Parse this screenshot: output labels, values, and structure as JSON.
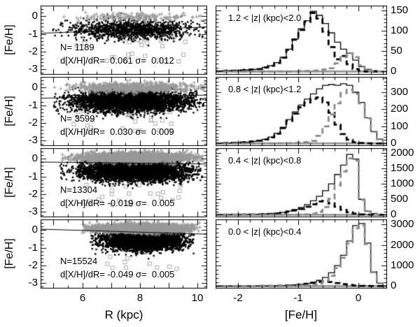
{
  "chart_data": {
    "type": "multi-panel",
    "description": "4x2 grid of panels: left column scatter plots of [Fe/H] vs R (kpc) with linear fits, right column step histograms of [Fe/H] for three samples (thin solid black, thick dashed black, thick dashed gray) in four |z| slices",
    "colors": {
      "background": "#ffffff",
      "black_dots": "#000000",
      "gray_plusses": "#999999",
      "open_squares": "#aaaaaa",
      "gray_filled_square_fill": "#cccccc",
      "gray_filled_square_edge": "#777777",
      "solid_hist": "#000000",
      "dashed_black_hist": "#000000",
      "dashed_gray_hist": "#8a8a8a",
      "baseline_gray": "#999999",
      "fit_line": "#000000"
    },
    "left_column": {
      "type": "scatter",
      "xlabel": "R (kpc)",
      "ylabel": "[Fe/H]",
      "xticks": [
        6,
        8,
        10
      ],
      "xrange": [
        4.55,
        10.35
      ],
      "x_minor": 0.5,
      "x_major": 1,
      "yticks": [
        0,
        -1,
        -2,
        -3
      ],
      "ytick_labels": [
        "0",
        "-1",
        "-2",
        "-3"
      ],
      "yrange": [
        -3.3,
        0.6
      ],
      "y_minor": 0.2,
      "y_major": 1
    },
    "right_column": {
      "type": "histogram",
      "xlabel": "[Fe/H]",
      "xticks": [
        -2,
        -1,
        0
      ],
      "xrange": [
        -2.37,
        0.47
      ],
      "x_minor": 0.2,
      "x_major": 1,
      "bin_start": -2.4,
      "bin_width": 0.1
    },
    "rows": [
      {
        "z_label": "1.2 < |z| (kpc)<2.0",
        "n_label": "N= 1189",
        "fit_label": "d[X/H]/dR=  0.061 σ=  0.012",
        "n": 1189,
        "slope": 0.061,
        "sigma": 0.012,
        "fit": {
          "feh_at_r8": -0.75,
          "slope": 0.061
        },
        "scatter": {
          "black_dots": {
            "count": 1189,
            "r_mean": 7.8,
            "r_sd": 1.1,
            "r_min": 4.9,
            "r_max": 10.3,
            "feh_mean": -0.75,
            "feh_sd": 0.27
          },
          "gray_plusses": {
            "count": 170,
            "r_mean": 7.8,
            "r_sd": 1.2,
            "r_min": 5.0,
            "r_max": 10.3,
            "feh_mean": -0.05,
            "feh_sd": 0.13
          },
          "open_squares": {
            "count": 24,
            "r_min": 5.8,
            "r_max": 9.6,
            "feh_min": -2.6,
            "feh_max": -1.2
          },
          "gray_filled_squares": {
            "count": 1
          }
        },
        "hist": {
          "yticks": [
            0,
            50,
            100,
            150
          ],
          "ymin": -8,
          "ymax": 162,
          "y_minor": 10,
          "y_major": 50,
          "solid_black": [
            1,
            1,
            2,
            2,
            3,
            4,
            5,
            6,
            10,
            14,
            22,
            35,
            55,
            80,
            105,
            125,
            148,
            138,
            118,
            95,
            72,
            55,
            45,
            28,
            12,
            5,
            2,
            1
          ],
          "dashed_black": [
            1,
            1,
            2,
            2,
            3,
            4,
            5,
            6,
            10,
            14,
            21,
            34,
            53,
            78,
            102,
            122,
            144,
            130,
            98,
            60,
            30,
            38,
            18,
            6,
            2,
            0,
            0,
            0
          ],
          "dashed_gray": [
            0,
            0,
            0,
            0,
            0,
            0,
            0,
            0,
            0,
            0,
            0,
            0,
            0,
            0,
            1,
            1,
            2,
            3,
            5,
            8,
            20,
            35,
            45,
            35,
            15,
            5,
            1,
            0
          ]
        }
      },
      {
        "z_label": "0.8 < |z| (kpc)<1.2",
        "n_label": "N= 3599",
        "fit_label": "d[X/H]/dR=  0.030 σ=  0.009",
        "n": 3599,
        "slope": 0.03,
        "sigma": 0.009,
        "fit": {
          "feh_at_r8": -0.5,
          "slope": 0.03
        },
        "scatter": {
          "black_dots": {
            "count": 3599,
            "r_mean": 7.7,
            "r_sd": 1.05,
            "r_min": 5.0,
            "r_max": 10.3,
            "feh_mean": -0.78,
            "feh_sd": 0.3
          },
          "gray_plusses": {
            "count": 700,
            "r_mean": 7.8,
            "r_sd": 1.1,
            "r_min": 5.0,
            "r_max": 10.3,
            "feh_mean": 0.0,
            "feh_sd": 0.13
          },
          "open_squares": {
            "count": 26,
            "r_min": 5.5,
            "r_max": 9.5,
            "feh_min": -2.5,
            "feh_max": -1.3
          },
          "gray_filled_squares": {
            "count": 2
          }
        },
        "hist": {
          "yticks": [
            0,
            100,
            200,
            300
          ],
          "ymin": -15,
          "ymax": 390,
          "y_minor": 20,
          "y_major": 100,
          "solid_black": [
            2,
            2,
            3,
            4,
            6,
            8,
            12,
            16,
            24,
            38,
            60,
            95,
            140,
            185,
            225,
            260,
            290,
            320,
            340,
            345,
            340,
            350,
            340,
            300,
            240,
            150,
            70,
            25
          ],
          "dashed_black": [
            2,
            2,
            3,
            4,
            6,
            8,
            12,
            16,
            23,
            36,
            57,
            90,
            132,
            175,
            212,
            240,
            262,
            270,
            240,
            180,
            110,
            55,
            22,
            8,
            3,
            1,
            0,
            0
          ],
          "dashed_gray": [
            0,
            0,
            0,
            0,
            0,
            0,
            0,
            0,
            0,
            0,
            1,
            1,
            2,
            3,
            5,
            8,
            15,
            45,
            100,
            170,
            235,
            295,
            315,
            290,
            235,
            148,
            68,
            24
          ]
        }
      },
      {
        "z_label": "0.4 < |z| (kpc)<0.8",
        "n_label": "N=13304",
        "fit_label": "d[X/H]/dR= -0.019 σ=  0.005",
        "n": 13304,
        "slope": -0.019,
        "sigma": 0.005,
        "fit": {
          "feh_at_r8": -0.25,
          "slope": -0.019
        },
        "scatter": {
          "black_dots": {
            "count": 13304,
            "r_mean": 7.8,
            "r_sd": 0.95,
            "r_min": 5.2,
            "r_max": 10.2,
            "feh_mean": -0.68,
            "feh_sd": 0.28
          },
          "gray_plusses": {
            "count": 2200,
            "r_mean": 7.9,
            "r_sd": 0.95,
            "r_min": 5.3,
            "r_max": 10.2,
            "feh_mean": 0.08,
            "feh_sd": 0.13
          },
          "open_squares": {
            "count": 26,
            "r_min": 6.0,
            "r_max": 9.5,
            "feh_min": -2.6,
            "feh_max": -1.2
          },
          "gray_filled_squares": {
            "count": 7
          }
        },
        "hist": {
          "yticks": [
            0,
            500,
            1000,
            1500,
            2000
          ],
          "ymin": -80,
          "ymax": 2150,
          "y_minor": 100,
          "y_major": 500,
          "solid_black": [
            5,
            5,
            6,
            8,
            10,
            12,
            15,
            20,
            28,
            38,
            55,
            80,
            120,
            170,
            240,
            330,
            450,
            600,
            780,
            1000,
            1300,
            1600,
            1950,
            1800,
            500,
            120,
            40,
            10
          ],
          "dashed_black": [
            4,
            4,
            5,
            6,
            8,
            10,
            13,
            17,
            23,
            32,
            48,
            70,
            100,
            140,
            190,
            260,
            340,
            430,
            450,
            370,
            260,
            160,
            85,
            40,
            15,
            6,
            2,
            1
          ],
          "dashed_gray": [
            0,
            0,
            0,
            0,
            0,
            0,
            0,
            0,
            0,
            0,
            0,
            1,
            2,
            4,
            8,
            15,
            40,
            100,
            250,
            520,
            950,
            1400,
            1820,
            1750,
            480,
            115,
            38,
            9
          ]
        }
      },
      {
        "z_label": "0.0 < |z| (kpc)<0.4",
        "n_label": "N=15524",
        "fit_label": "d[X/H]/dR= -0.049 σ=  0.005",
        "n": 15524,
        "slope": -0.049,
        "sigma": 0.005,
        "fit": {
          "feh_at_r8": -0.12,
          "slope": -0.049
        },
        "scatter": {
          "black_dots": {
            "count": 15524,
            "r_mean": 8.1,
            "r_sd": 0.7,
            "r_min": 6.2,
            "r_max": 9.9,
            "feh_mean": -0.58,
            "feh_sd": 0.27
          },
          "gray_plusses": {
            "count": 2600,
            "r_mean": 8.0,
            "r_sd": 0.8,
            "r_min": 6.0,
            "r_max": 10.1,
            "feh_mean": 0.1,
            "feh_sd": 0.12
          },
          "open_squares": {
            "count": 10,
            "r_min": 6.6,
            "r_max": 9.3,
            "feh_min": -2.2,
            "feh_max": -1.5
          },
          "gray_filled_squares": {
            "count": 2
          }
        },
        "hist": {
          "yticks": [
            0,
            1000,
            2000,
            3000
          ],
          "ymin": -120,
          "ymax": 3250,
          "y_minor": 200,
          "y_major": 1000,
          "solid_black": [
            3,
            3,
            4,
            4,
            5,
            6,
            8,
            10,
            12,
            15,
            20,
            28,
            40,
            60,
            90,
            130,
            190,
            280,
            420,
            650,
            1000,
            1500,
            2200,
            2950,
            3050,
            2100,
            700,
            150
          ],
          "dashed_black": [
            2,
            2,
            3,
            3,
            4,
            5,
            6,
            8,
            10,
            12,
            16,
            22,
            30,
            45,
            70,
            110,
            160,
            210,
            230,
            200,
            150,
            100,
            60,
            30,
            15,
            8,
            4,
            2
          ],
          "dashed_gray": [
            0,
            0,
            0,
            0,
            0,
            0,
            0,
            0,
            1,
            1,
            2,
            3,
            5,
            8,
            15,
            30,
            60,
            130,
            260,
            500,
            880,
            1380,
            2080,
            2820,
            2950,
            2050,
            680,
            140
          ]
        }
      }
    ]
  }
}
